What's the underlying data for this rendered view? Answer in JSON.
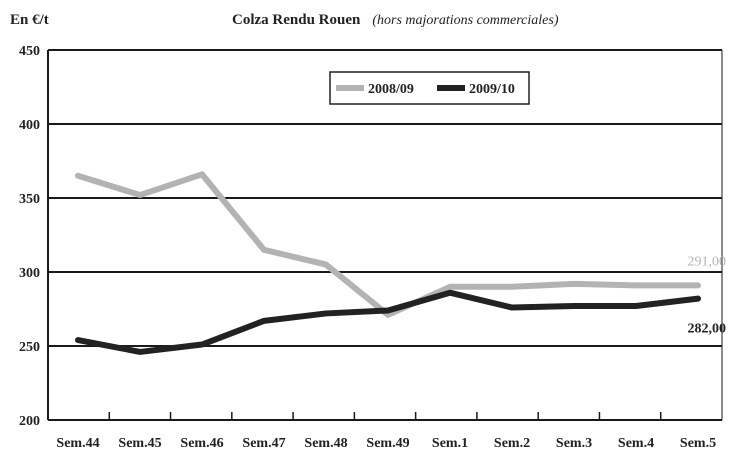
{
  "chart_data": {
    "type": "line",
    "title": "Colza Rendu Rouen",
    "subtitle": "(hors majorations commerciales)",
    "ylabel": "En €/t",
    "xlabel": "",
    "categories": [
      "Sem.44",
      "Sem.45",
      "Sem.46",
      "Sem.47",
      "Sem.48",
      "Sem.49",
      "Sem.1",
      "Sem.2",
      "Sem.3",
      "Sem.4",
      "Sem.5"
    ],
    "ylim": [
      200,
      450
    ],
    "yticks": [
      200,
      250,
      300,
      350,
      400,
      450
    ],
    "grid": "horizontal",
    "legend_position": "top-right",
    "series": [
      {
        "name": "2008/09",
        "color": "#b3b3b3",
        "values": [
          365,
          352,
          366,
          315,
          305,
          271,
          290,
          290,
          292,
          291,
          291
        ]
      },
      {
        "name": "2009/10",
        "color": "#222222",
        "values": [
          254,
          246,
          251,
          267,
          272,
          274,
          286,
          276,
          277,
          277,
          282
        ]
      }
    ],
    "annotations": [
      {
        "series": 0,
        "text": "291,00",
        "color": "#b3b3b3"
      },
      {
        "series": 1,
        "text": "282,00",
        "color": "#222222"
      }
    ]
  }
}
